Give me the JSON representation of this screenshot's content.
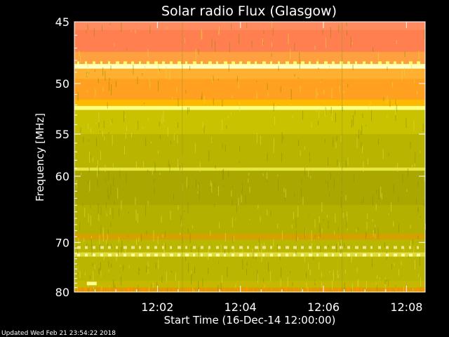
{
  "chart_data": {
    "type": "heatmap",
    "title": "Solar radio Flux (Glasgow)",
    "xlabel": "Start Time (16-Dec-14 12:00:00)",
    "ylabel": "Frequency [MHz]",
    "x_ticks": [
      "12:02",
      "12:04",
      "12:06",
      "12:08"
    ],
    "x_tick_minutes": [
      2,
      4,
      6,
      8
    ],
    "xlim_minutes": [
      0,
      8.45
    ],
    "y_ticks": [
      45,
      50,
      55,
      60,
      70,
      80
    ],
    "ylim": [
      45,
      80
    ],
    "y_scale": "reciprocal",
    "colormap": [
      "#b3b300",
      "#d4d000",
      "#ffa500",
      "#ff7f50",
      "#ffff80",
      "#ffffff"
    ],
    "frame_color": "#ffffff",
    "segment_breaks_minutes": [
      2.6,
      6.45
    ],
    "bands": [
      {
        "f_from": 45.0,
        "f_to": 45.6,
        "color": "#ff8c60"
      },
      {
        "f_from": 45.6,
        "f_to": 47.3,
        "color": "#ff7f50"
      },
      {
        "f_from": 47.3,
        "f_to": 48.3,
        "color": "#ffa040"
      },
      {
        "f_from": 48.3,
        "f_to": 48.7,
        "color": "#ffffc0"
      },
      {
        "f_from": 48.7,
        "f_to": 49.6,
        "color": "#ffb030"
      },
      {
        "f_from": 49.6,
        "f_to": 51.5,
        "color": "#ffa020"
      },
      {
        "f_from": 51.5,
        "f_to": 52.1,
        "color": "#ffb800"
      },
      {
        "f_from": 52.1,
        "f_to": 52.5,
        "color": "#ffff80"
      },
      {
        "f_from": 52.5,
        "f_to": 55.0,
        "color": "#c8c200"
      },
      {
        "f_from": 55.0,
        "f_to": 58.9,
        "color": "#b8b400"
      },
      {
        "f_from": 58.9,
        "f_to": 59.3,
        "color": "#e6e640"
      },
      {
        "f_from": 59.3,
        "f_to": 64.0,
        "color": "#aaa800"
      },
      {
        "f_from": 64.0,
        "f_to": 68.5,
        "color": "#b3b000"
      },
      {
        "f_from": 68.5,
        "f_to": 69.5,
        "color": "#d6a000"
      },
      {
        "f_from": 69.5,
        "f_to": 71.8,
        "color": "#bbb600"
      },
      {
        "f_from": 71.8,
        "f_to": 72.6,
        "color": "#e0dc40"
      },
      {
        "f_from": 72.6,
        "f_to": 77.5,
        "color": "#b9b500"
      },
      {
        "f_from": 77.5,
        "f_to": 79.0,
        "color": "#c4b800"
      },
      {
        "f_from": 79.0,
        "f_to": 80.0,
        "color": "#e09a00"
      }
    ],
    "footer": "Updated Wed Feb 21 23:54:22 2018"
  }
}
